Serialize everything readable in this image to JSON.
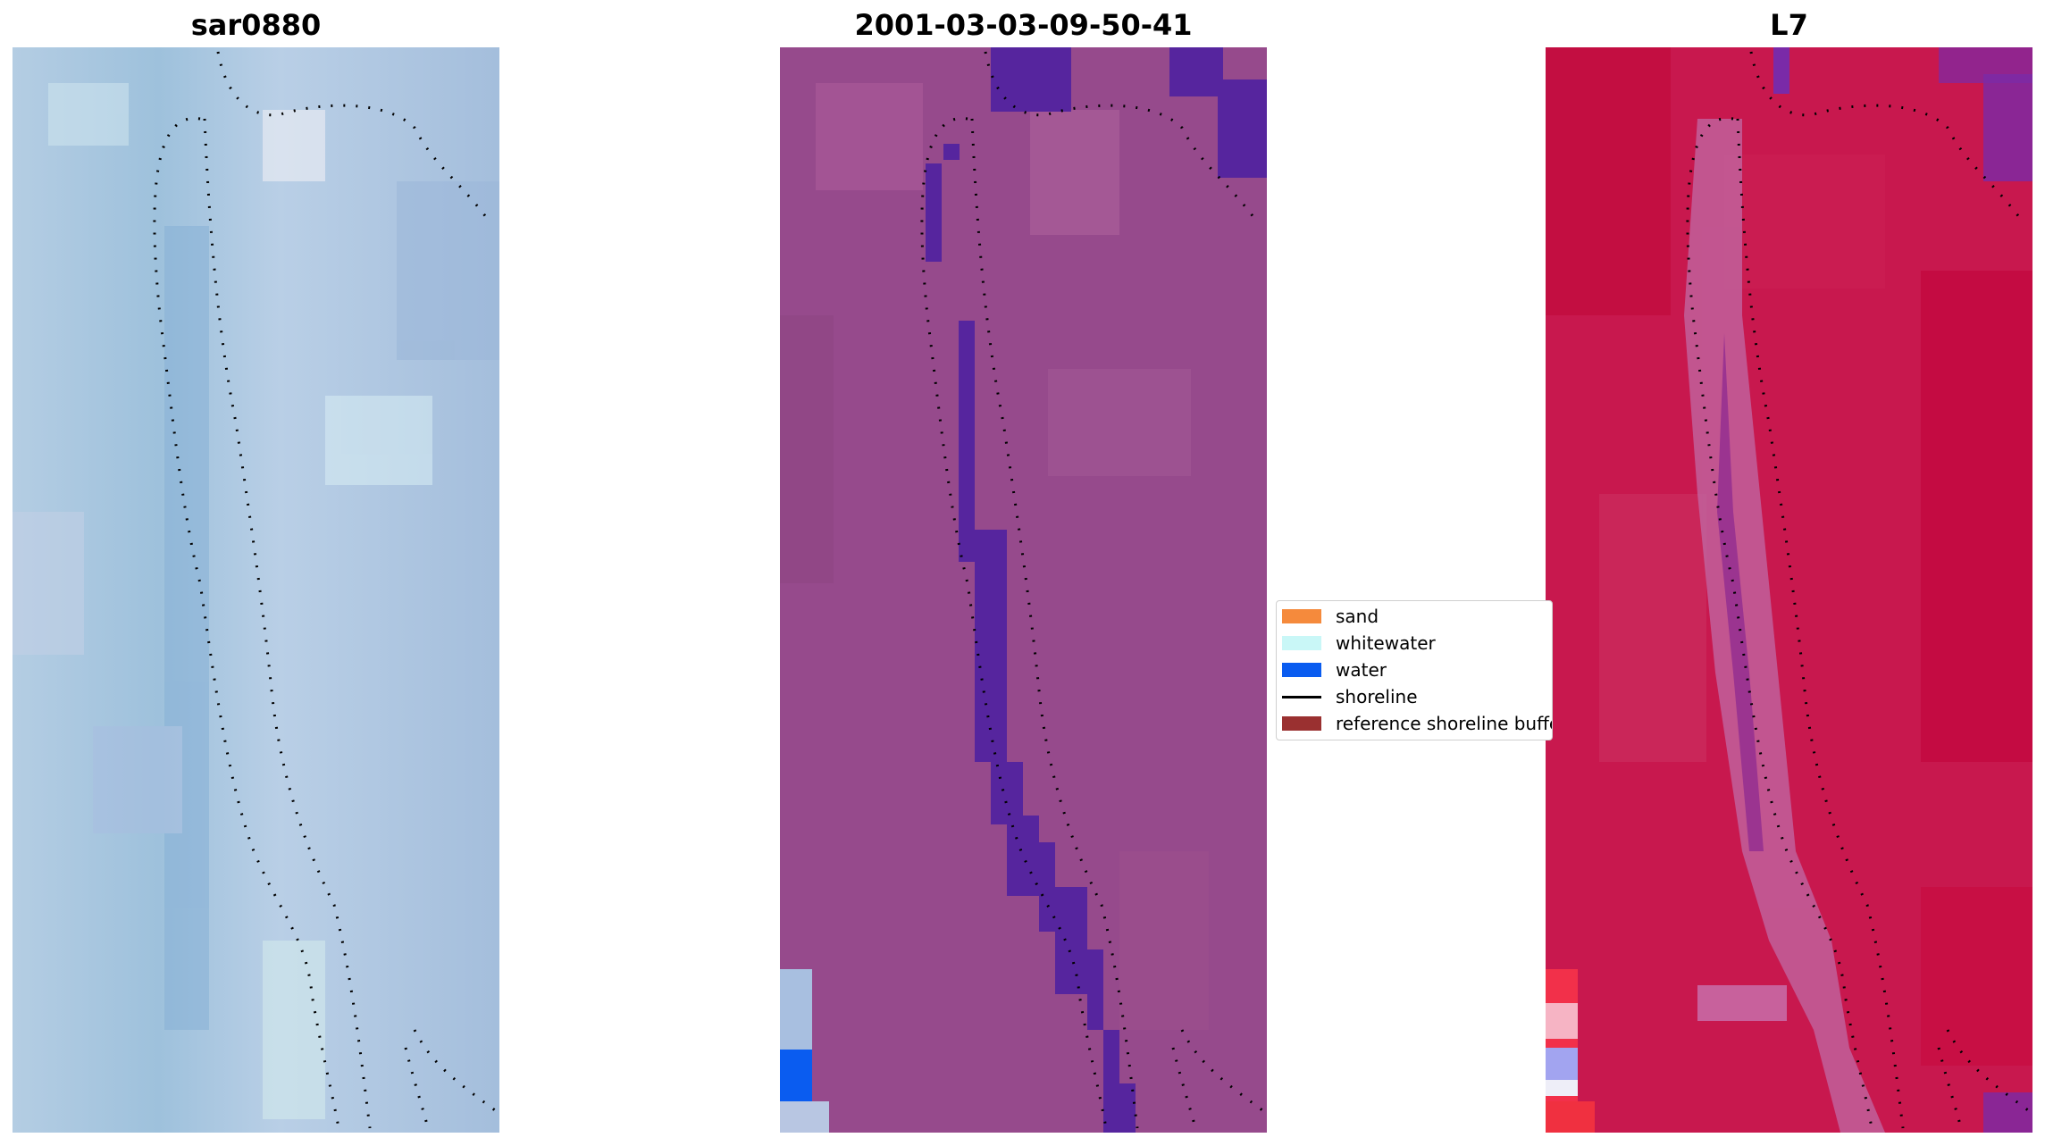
{
  "panels": [
    {
      "title": "sar0880"
    },
    {
      "title": "2001-03-03-09-50-41"
    },
    {
      "title": "L7"
    }
  ],
  "legend": [
    {
      "label": "sand",
      "color": "#f58a3c",
      "kind": "patch"
    },
    {
      "label": "whitewater",
      "color": "#c9f7f7",
      "kind": "patch"
    },
    {
      "label": "water",
      "color": "#0a5cf0",
      "kind": "patch"
    },
    {
      "label": "shoreline",
      "color": "#000000",
      "kind": "line"
    },
    {
      "label": "reference shoreline buffer",
      "color": "#9a3030",
      "kind": "patch"
    }
  ]
}
